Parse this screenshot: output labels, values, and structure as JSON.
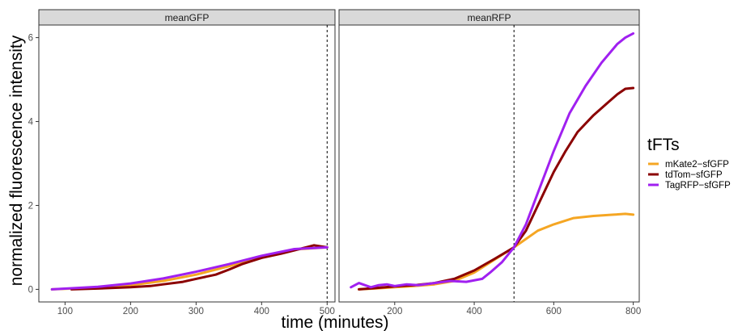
{
  "chart_data": {
    "type": "line",
    "xlabel": "time (minutes)",
    "ylabel": "normalized fluorescence intensity",
    "y_ticks": [
      0,
      2,
      4,
      6
    ],
    "ylim": [
      -0.3,
      6.3
    ],
    "grid": false,
    "legend": {
      "title": "tFTs",
      "placement": "right",
      "entries": [
        "mKate2−sfGFP",
        "tdTom−sfGFP",
        "TagRFP−sfGFP"
      ]
    },
    "colors": {
      "mKate2−sfGFP": "#f5a623",
      "tdTom−sfGFP": "#8b0000",
      "TagRFP−sfGFP": "#a020f0"
    },
    "panels": [
      {
        "strip": "meanGFP",
        "xlim": [
          60,
          512
        ],
        "x_ticks": [
          100,
          200,
          300,
          400,
          500
        ],
        "vline": 500,
        "series": [
          {
            "name": "mKate2−sfGFP",
            "x": [
              80,
              150,
              200,
              250,
              300,
              350,
              400,
              450,
              500
            ],
            "y": [
              0.0,
              0.04,
              0.1,
              0.2,
              0.35,
              0.55,
              0.78,
              0.95,
              1.0
            ]
          },
          {
            "name": "tdTom−sfGFP",
            "x": [
              110,
              150,
              200,
              230,
              250,
              280,
              300,
              330,
              350,
              370,
              400,
              430,
              460,
              480,
              500
            ],
            "y": [
              0.0,
              0.02,
              0.05,
              0.08,
              0.12,
              0.18,
              0.25,
              0.35,
              0.47,
              0.6,
              0.75,
              0.85,
              0.97,
              1.05,
              1.0
            ]
          },
          {
            "name": "TagRFP−sfGFP",
            "x": [
              80,
              150,
              200,
              250,
              300,
              350,
              400,
              450,
              500
            ],
            "y": [
              0.0,
              0.06,
              0.14,
              0.26,
              0.42,
              0.6,
              0.8,
              0.96,
              1.0
            ]
          }
        ]
      },
      {
        "strip": "meanRFP",
        "xlim": [
          60,
          815
        ],
        "x_ticks": [
          200,
          400,
          600,
          800
        ],
        "vline": 500,
        "series": [
          {
            "name": "mKate2−sfGFP",
            "x": [
              110,
              150,
              200,
              250,
              300,
              350,
              400,
              450,
              500,
              530,
              560,
              600,
              650,
              700,
              750,
              780,
              800
            ],
            "y": [
              0.0,
              0.02,
              0.05,
              0.08,
              0.12,
              0.2,
              0.4,
              0.7,
              1.0,
              1.2,
              1.4,
              1.55,
              1.7,
              1.75,
              1.78,
              1.8,
              1.78
            ]
          },
          {
            "name": "tdTom−sfGFP",
            "x": [
              110,
              150,
              200,
              250,
              300,
              350,
              400,
              450,
              500,
              530,
              560,
              600,
              630,
              660,
              700,
              730,
              760,
              780,
              800
            ],
            "y": [
              0.0,
              0.03,
              0.07,
              0.1,
              0.15,
              0.25,
              0.45,
              0.72,
              1.0,
              1.4,
              2.0,
              2.8,
              3.3,
              3.75,
              4.15,
              4.4,
              4.65,
              4.78,
              4.8
            ]
          },
          {
            "name": "TagRFP−sfGFP",
            "x": [
              90,
              110,
              140,
              160,
              180,
              200,
              230,
              260,
              300,
              340,
              380,
              420,
              440,
              470,
              500,
              530,
              560,
              600,
              640,
              680,
              720,
              760,
              780,
              800
            ],
            "y": [
              0.05,
              0.15,
              0.05,
              0.1,
              0.12,
              0.08,
              0.12,
              0.1,
              0.15,
              0.2,
              0.18,
              0.25,
              0.4,
              0.65,
              1.0,
              1.55,
              2.3,
              3.3,
              4.2,
              4.85,
              5.4,
              5.85,
              6.0,
              6.1
            ]
          }
        ]
      }
    ]
  }
}
